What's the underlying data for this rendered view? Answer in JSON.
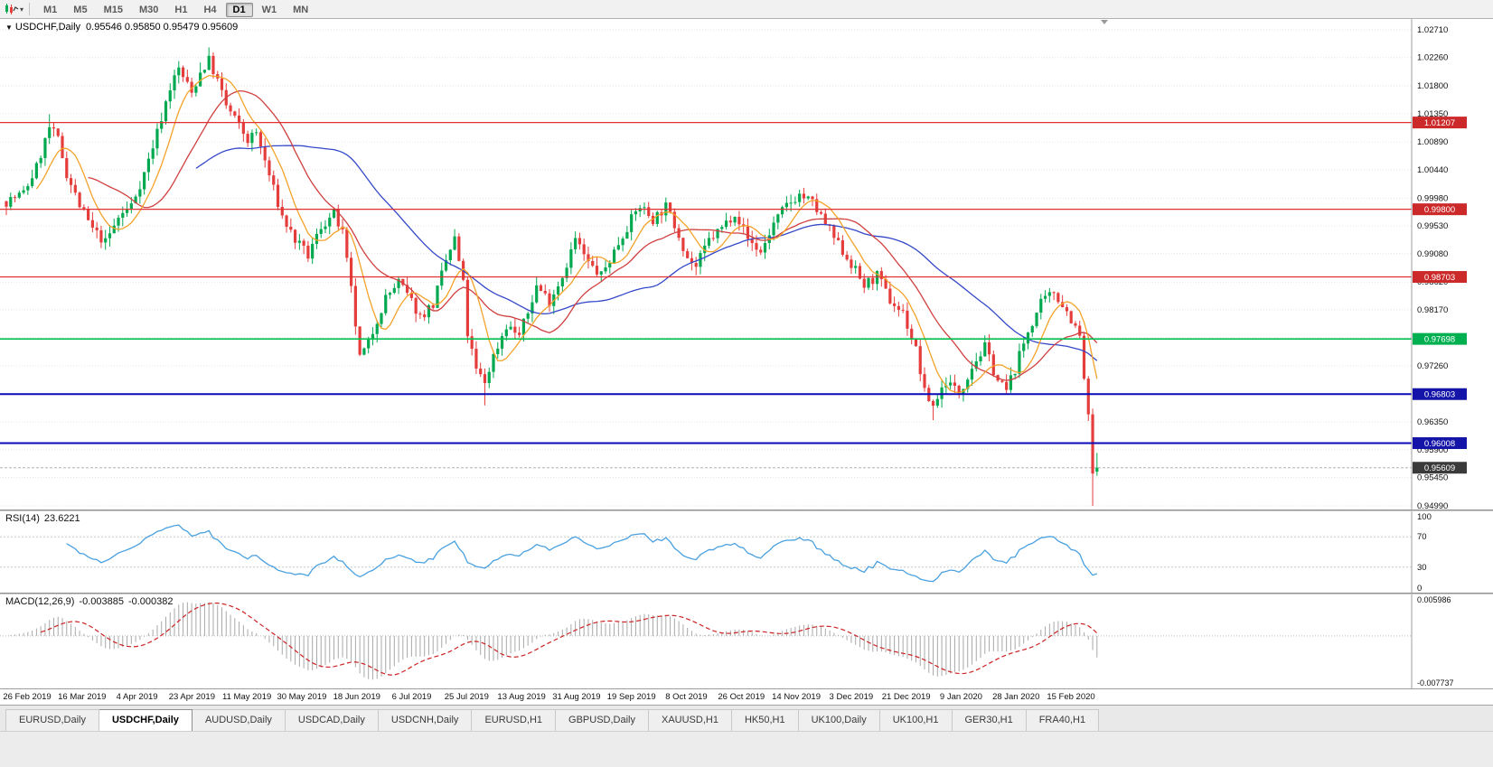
{
  "toolbar": {
    "timeframes": [
      "M1",
      "M5",
      "M15",
      "M30",
      "H1",
      "H4",
      "D1",
      "W1",
      "MN"
    ],
    "active": "D1"
  },
  "chart": {
    "collapse_arrow": "▼",
    "symbol_label": "USDCHF,Daily",
    "ohlc_text": "0.95546 0.95850 0.95479 0.95609"
  },
  "rsi_panel": {
    "label": "RSI(14)",
    "value": "23.6221",
    "axis": [
      "100",
      "70",
      "30",
      "0"
    ]
  },
  "macd_panel": {
    "label": "MACD(12,26,9)",
    "value_main": "-0.003885",
    "value_signal": "-0.000382",
    "axis_max": "0.005986",
    "axis_min": "-0.007737"
  },
  "tabs": {
    "items": [
      "EURUSD,Daily",
      "USDCHF,Daily",
      "AUDUSD,Daily",
      "USDCAD,Daily",
      "USDCNH,Daily",
      "EURUSD,H1",
      "GBPUSD,Daily",
      "XAUUSD,H1",
      "HK50,H1",
      "UK100,Daily",
      "UK100,H1",
      "GER30,H1",
      "FRA40,H1"
    ],
    "active": "USDCHF,Daily"
  },
  "colors": {
    "up": "#00a94f",
    "down": "#e53c3c",
    "ma_fast": "#f3a32a",
    "ma_mid": "#d04040",
    "ma_slow": "#3448c8",
    "rsi": "#4aa1e0",
    "rsi_level": "#c9c9c9",
    "macd_hist": "#a8a8a8",
    "macd_signal": "#cc2222",
    "grid": "#e4e4e4",
    "axis_text": "#111111",
    "bid_line": "#b4b4b4",
    "badge_text": "#ffffff",
    "current_badge": "#3a3a3a"
  },
  "chart_data": {
    "type": "candlestick",
    "symbol": "USDCHF",
    "timeframe": "Daily",
    "num_candles": 254,
    "price_ticks": [
      "1.02710",
      "1.02260",
      "1.01800",
      "1.01350",
      "1.00890",
      "1.00440",
      "0.99980",
      "0.99530",
      "0.99080",
      "0.98620",
      "0.98170",
      "0.97720",
      "0.97260",
      "0.96810",
      "0.96350",
      "0.95900",
      "0.95450",
      "0.94990"
    ],
    "date_labels": [
      "26 Feb 2019",
      "16 Mar 2019",
      "4 Apr 2019",
      "23 Apr 2019",
      "11 May 2019",
      "30 May 2019",
      "18 Jun 2019",
      "6 Jul 2019",
      "25 Jul 2019",
      "13 Aug 2019",
      "31 Aug 2019",
      "19 Sep 2019",
      "8 Oct 2019",
      "26 Oct 2019",
      "14 Nov 2019",
      "3 Dec 2019",
      "21 Dec 2019",
      "9 Jan 2020",
      "28 Jan 2020",
      "15 Feb 2020"
    ],
    "hlines": [
      {
        "price": 1.01207,
        "label": "1.01207",
        "line_color": "#e03030",
        "badge_color": "#cc2a2a",
        "width": 1.3
      },
      {
        "price": 0.998,
        "label": "0.99800",
        "line_color": "#e03030",
        "badge_color": "#cc2a2a",
        "width": 1.3
      },
      {
        "price": 0.98703,
        "label": "0.98703",
        "line_color": "#e03030",
        "badge_color": "#cc2a2a",
        "width": 1.3
      },
      {
        "price": 0.97698,
        "label": "0.97698",
        "line_color": "#00c050",
        "badge_color": "#00b050",
        "width": 1.6
      },
      {
        "price": 0.96803,
        "label": "0.96803",
        "line_color": "#0a0ab8",
        "badge_color": "#1414a8",
        "width": 2
      },
      {
        "price": 0.96008,
        "label": "0.96008",
        "line_color": "#0a0ab8",
        "badge_color": "#1414a8",
        "width": 2
      }
    ],
    "current_price": 0.95609,
    "current_price_label": "0.95609",
    "last_candle": {
      "open": 0.95546,
      "high": 0.9585,
      "low": 0.95479,
      "close": 0.95609
    },
    "close_waypoints": [
      [
        0,
        0.9993
      ],
      [
        4,
        1.0006
      ],
      [
        7,
        1.0048
      ],
      [
        10,
        1.0112
      ],
      [
        12,
        1.0093
      ],
      [
        14,
        1.0038
      ],
      [
        17,
        0.9986
      ],
      [
        20,
        0.9947
      ],
      [
        23,
        0.9926
      ],
      [
        26,
        0.9966
      ],
      [
        29,
        0.9987
      ],
      [
        32,
        1.0038
      ],
      [
        35,
        1.0105
      ],
      [
        38,
        1.0178
      ],
      [
        40,
        1.0208
      ],
      [
        43,
        1.0168
      ],
      [
        45,
        1.0202
      ],
      [
        47,
        1.0222
      ],
      [
        49,
        1.0188
      ],
      [
        51,
        1.0148
      ],
      [
        53,
        1.0127
      ],
      [
        56,
        1.0092
      ],
      [
        58,
        1.0104
      ],
      [
        60,
        1.0058
      ],
      [
        62,
        1.0012
      ],
      [
        64,
        0.9968
      ],
      [
        67,
        0.993
      ],
      [
        70,
        0.9904
      ],
      [
        73,
        0.9952
      ],
      [
        76,
        0.9972
      ],
      [
        78,
        0.994
      ],
      [
        80,
        0.9848
      ],
      [
        82,
        0.9738
      ],
      [
        84,
        0.9762
      ],
      [
        86,
        0.9802
      ],
      [
        88,
        0.9836
      ],
      [
        91,
        0.9862
      ],
      [
        94,
        0.983
      ],
      [
        96,
        0.9806
      ],
      [
        99,
        0.9826
      ],
      [
        102,
        0.9896
      ],
      [
        104,
        0.9932
      ],
      [
        106,
        0.9858
      ],
      [
        107,
        0.9778
      ],
      [
        109,
        0.9718
      ],
      [
        111,
        0.97
      ],
      [
        113,
        0.9742
      ],
      [
        116,
        0.9792
      ],
      [
        119,
        0.9776
      ],
      [
        121,
        0.9812
      ],
      [
        123,
        0.9856
      ],
      [
        126,
        0.9832
      ],
      [
        129,
        0.9872
      ],
      [
        132,
        0.9932
      ],
      [
        135,
        0.9892
      ],
      [
        138,
        0.9872
      ],
      [
        141,
        0.9912
      ],
      [
        144,
        0.9952
      ],
      [
        147,
        0.9986
      ],
      [
        150,
        0.9964
      ],
      [
        153,
        0.9984
      ],
      [
        156,
        0.994
      ],
      [
        158,
        0.9902
      ],
      [
        160,
        0.9886
      ],
      [
        163,
        0.993
      ],
      [
        166,
        0.995
      ],
      [
        169,
        0.9976
      ],
      [
        172,
        0.9932
      ],
      [
        175,
        0.991
      ],
      [
        178,
        0.9956
      ],
      [
        181,
        0.9986
      ],
      [
        184,
        1.0004
      ],
      [
        187,
        0.999
      ],
      [
        190,
        0.9956
      ],
      [
        193,
        0.9922
      ],
      [
        196,
        0.9892
      ],
      [
        199,
        0.9856
      ],
      [
        202,
        0.9872
      ],
      [
        205,
        0.9832
      ],
      [
        208,
        0.9812
      ],
      [
        211,
        0.9752
      ],
      [
        213,
        0.9682
      ],
      [
        215,
        0.9662
      ],
      [
        218,
        0.9702
      ],
      [
        221,
        0.9682
      ],
      [
        224,
        0.9726
      ],
      [
        227,
        0.9756
      ],
      [
        230,
        0.9702
      ],
      [
        232,
        0.9686
      ],
      [
        234,
        0.9722
      ],
      [
        237,
        0.9782
      ],
      [
        240,
        0.9826
      ],
      [
        243,
        0.9846
      ],
      [
        245,
        0.9826
      ],
      [
        247,
        0.9802
      ],
      [
        249,
        0.9772
      ],
      [
        251,
        0.964
      ],
      [
        252,
        0.9552
      ],
      [
        253,
        0.95609
      ]
    ],
    "noise_seed": 7,
    "noise_amp": 0.0018,
    "wick_amp": 0.0014,
    "forced_extremes": {
      "highs": [
        [
          10,
          1.0134
        ],
        [
          45,
          1.0218
        ],
        [
          47,
          1.0226
        ]
      ],
      "lows": [
        [
          111,
          0.9662
        ],
        [
          215,
          0.9638
        ],
        [
          252,
          0.9499
        ]
      ]
    },
    "moving_averages": [
      {
        "period": 45,
        "color": "#3448c8"
      },
      {
        "period": 20,
        "color": "#d04040"
      },
      {
        "period": 8,
        "color": "#f3a32a"
      }
    ],
    "rsi": {
      "period": 14,
      "last_value": 23.6221,
      "levels": [
        70,
        30
      ],
      "range": [
        0,
        100
      ]
    },
    "macd": {
      "fast": 12,
      "slow": 26,
      "signal": 9,
      "last_main": -0.003885,
      "last_signal": -0.000382,
      "axis_max": 0.005986,
      "axis_min": -0.007737
    }
  }
}
